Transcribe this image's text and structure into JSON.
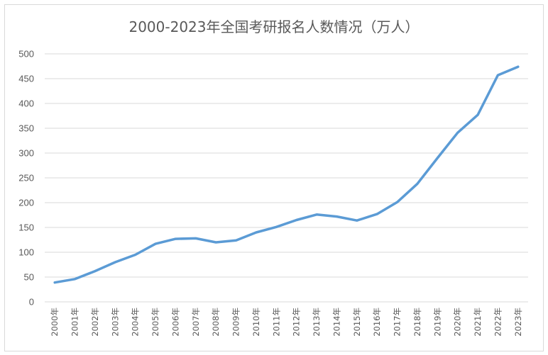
{
  "chart_data": {
    "type": "line",
    "title": "2000-2023年全国考研报名人数情况（万人）",
    "xlabel": "",
    "ylabel": "",
    "ylim": [
      0,
      500
    ],
    "yticks": [
      "0",
      "50",
      "100",
      "150",
      "200",
      "250",
      "300",
      "350",
      "400",
      "450",
      "500"
    ],
    "grid": true,
    "legend": "none",
    "categories": [
      "2000年",
      "2001年",
      "2002年",
      "2003年",
      "2004年",
      "2005年",
      "2006年",
      "2007年",
      "2008年",
      "2009年",
      "2010年",
      "2011年",
      "2012年",
      "2013年",
      "2014年",
      "2015年",
      "2016年",
      "2017年",
      "2018年",
      "2019年",
      "2020年",
      "2021年",
      "2022年",
      "2023年"
    ],
    "series": [
      {
        "values": [
          39,
          46,
          62,
          80,
          95,
          117,
          127,
          128,
          120,
          124,
          140,
          151,
          165,
          176,
          172,
          164,
          177,
          201,
          238,
          290,
          341,
          377,
          457,
          474
        ],
        "color": "#5b9bd5"
      }
    ]
  }
}
